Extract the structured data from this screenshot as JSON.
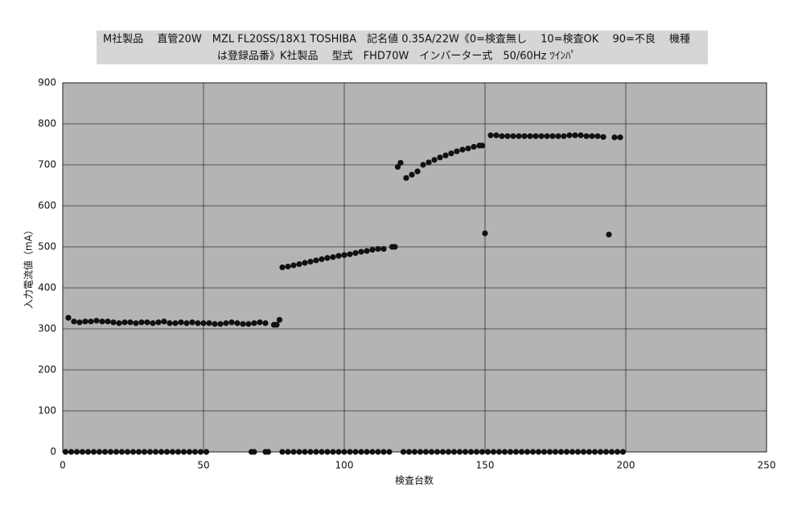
{
  "chart_data": {
    "type": "scatter",
    "title": [
      "M社製品　 直管20W　MZL FL20SS/18X1 TOSHIBA　記名値 0.35A/22W《0=検査無し　 10=検査OK　 90=不良　 機種",
      "は登録品番》K社製品　 型式　FHD70W　インバーター式　50/60Hz ﾂｲﾝﾊﾟ"
    ],
    "x_label": "検査台数",
    "y_label": "入力電流値（mA）",
    "xlim": [
      0,
      250
    ],
    "xticks": [
      0,
      50,
      100,
      150,
      200,
      250
    ],
    "ylim": [
      0,
      900
    ],
    "yticks": [
      0,
      100,
      200,
      300,
      400,
      500,
      600,
      700,
      800,
      900
    ],
    "grid": true,
    "series": [
      {
        "color": "#111111",
        "x": [
          2,
          4,
          6,
          8,
          10,
          12,
          14,
          16,
          18,
          20,
          22,
          24,
          26,
          28,
          30,
          32,
          34,
          36,
          38,
          40,
          42,
          44,
          46,
          48,
          50,
          52,
          54,
          56,
          58,
          60,
          62,
          64,
          66,
          68,
          70,
          72,
          75,
          76,
          77,
          78,
          80,
          82,
          84,
          86,
          88,
          90,
          92,
          94,
          96,
          98,
          100,
          102,
          104,
          106,
          108,
          110,
          112,
          114,
          117,
          118,
          119,
          120,
          122,
          124,
          126,
          128,
          130,
          132,
          134,
          136,
          138,
          140,
          142,
          144,
          146,
          148,
          149,
          150,
          152,
          154,
          156,
          158,
          160,
          162,
          164,
          166,
          168,
          170,
          172,
          174,
          176,
          178,
          180,
          182,
          184,
          186,
          188,
          190,
          192,
          194,
          196,
          198
        ],
        "values": [
          327,
          318,
          316,
          318,
          318,
          320,
          318,
          318,
          316,
          314,
          316,
          316,
          314,
          316,
          316,
          314,
          316,
          318,
          314,
          314,
          316,
          314,
          316,
          314,
          314,
          314,
          312,
          312,
          314,
          316,
          314,
          312,
          312,
          314,
          316,
          314,
          310,
          310,
          322,
          450,
          452,
          455,
          458,
          461,
          464,
          467,
          470,
          473,
          475,
          478,
          480,
          482,
          485,
          488,
          490,
          493,
          495,
          495,
          500,
          500,
          695,
          705,
          668,
          676,
          684,
          700,
          706,
          712,
          718,
          723,
          728,
          733,
          737,
          740,
          744,
          747,
          747,
          533,
          772,
          772,
          770,
          770,
          770,
          770,
          770,
          770,
          770,
          770,
          770,
          770,
          770,
          770,
          772,
          772,
          772,
          770,
          770,
          770,
          768,
          530,
          767,
          767
        ]
      },
      {
        "color": "#111111",
        "x": [
          1,
          3,
          5,
          7,
          9,
          11,
          13,
          15,
          17,
          19,
          21,
          23,
          25,
          27,
          29,
          31,
          33,
          35,
          37,
          39,
          41,
          43,
          45,
          47,
          49,
          51,
          67,
          68,
          72,
          73,
          78,
          80,
          82,
          84,
          86,
          88,
          90,
          92,
          94,
          96,
          98,
          100,
          102,
          104,
          106,
          108,
          110,
          112,
          114,
          116,
          121,
          123,
          125,
          127,
          129,
          131,
          133,
          135,
          137,
          139,
          141,
          143,
          145,
          147,
          149,
          151,
          153,
          155,
          157,
          159,
          161,
          163,
          165,
          167,
          169,
          171,
          173,
          175,
          177,
          179,
          181,
          183,
          185,
          187,
          189,
          191,
          193,
          195,
          197,
          199
        ],
        "values": [
          0,
          0,
          0,
          0,
          0,
          0,
          0,
          0,
          0,
          0,
          0,
          0,
          0,
          0,
          0,
          0,
          0,
          0,
          0,
          0,
          0,
          0,
          0,
          0,
          0,
          0,
          0,
          0,
          0,
          0,
          0,
          0,
          0,
          0,
          0,
          0,
          0,
          0,
          0,
          0,
          0,
          0,
          0,
          0,
          0,
          0,
          0,
          0,
          0,
          0,
          0,
          0,
          0,
          0,
          0,
          0,
          0,
          0,
          0,
          0,
          0,
          0,
          0,
          0,
          0,
          0,
          0,
          0,
          0,
          0,
          0,
          0,
          0,
          0,
          0,
          0,
          0,
          0,
          0,
          0,
          0,
          0,
          0,
          0,
          0,
          0,
          0,
          0,
          0,
          0
        ]
      }
    ]
  }
}
